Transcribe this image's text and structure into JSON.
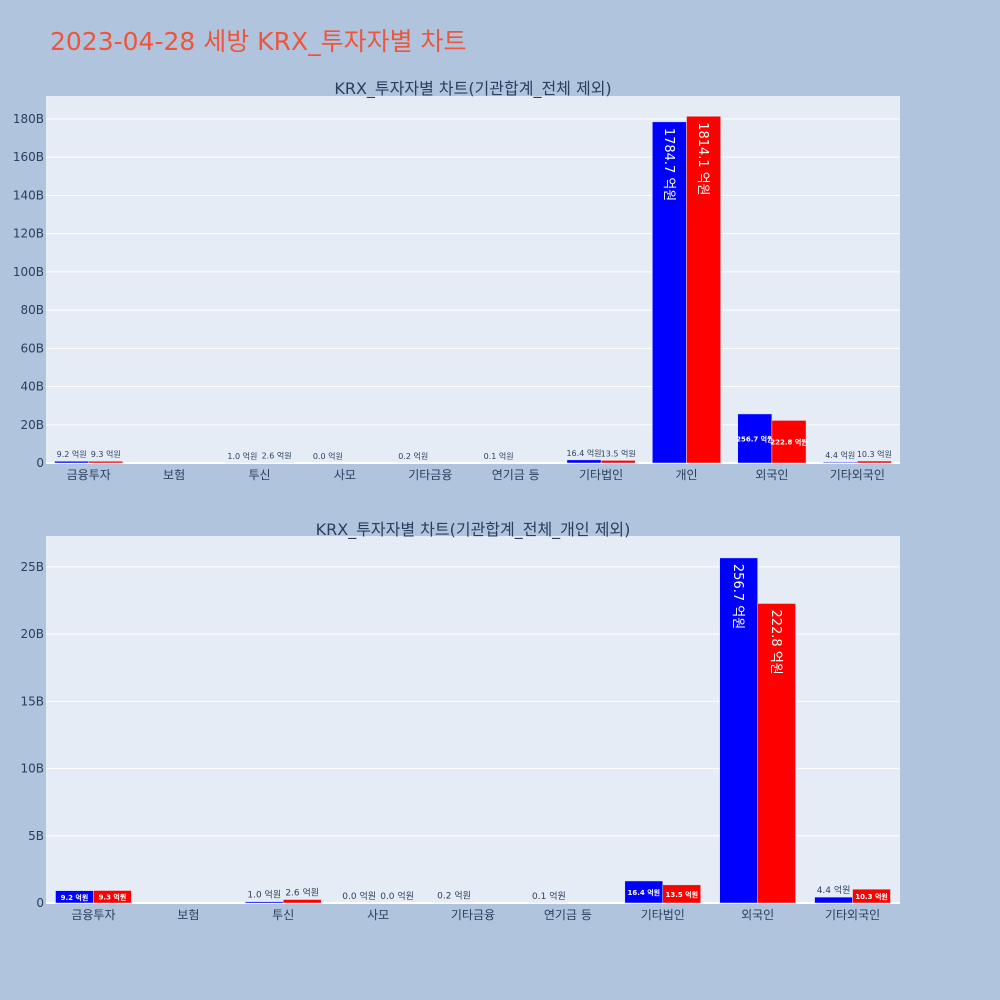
{
  "page_title": "2023-04-28 세방 KRX_투자자별 차트",
  "colors": {
    "page_bg": "#b0c4de",
    "plot_bg": "#e5ecf6",
    "sell": "#0000ff",
    "buy": "#ff0000",
    "title": "#ef553b",
    "text": "#2a3f5f"
  },
  "chart_data": [
    {
      "type": "bar",
      "title": "KRX_투자자별 차트(기관합계_전체 제외)",
      "categories": [
        "금융투자",
        "보험",
        "투신",
        "사모",
        "기타금융",
        "연기금 등",
        "기타법인",
        "개인",
        "외국인",
        "기타외국인"
      ],
      "series": [
        {
          "color": "#0000ff",
          "values": [
            0.92,
            0,
            0.1,
            0.0,
            0.02,
            0.01,
            1.64,
            178.47,
            25.67,
            0.44
          ],
          "labels": [
            "9.2 억원",
            "",
            "1.0 억원",
            "0.0 억원",
            "0.2 억원",
            "0.1 억원",
            "16.4 억원",
            "1784.7 억원",
            "256.7 억원",
            "4.4 억원"
          ]
        },
        {
          "color": "#ff0000",
          "values": [
            0.93,
            0,
            0.26,
            0,
            0,
            0,
            1.35,
            181.41,
            22.28,
            1.03
          ],
          "labels": [
            "9.3 억원",
            "",
            "2.6 억원",
            "",
            "",
            "",
            "13.5 억원",
            "1814.1 억원",
            "222.8 억원",
            "10.3 억원"
          ]
        }
      ],
      "ylim": [
        0,
        192
      ],
      "yticks": [
        0,
        20,
        40,
        60,
        80,
        100,
        120,
        140,
        160,
        180
      ],
      "ytick_labels": [
        "0",
        "20B",
        "40B",
        "60B",
        "80B",
        "100B",
        "120B",
        "140B",
        "160B",
        "180B"
      ],
      "grid": true
    },
    {
      "type": "bar",
      "title": "KRX_투자자별 차트(기관합계_전체_개인 제외)",
      "categories": [
        "금융투자",
        "보험",
        "투신",
        "사모",
        "기타금융",
        "연기금 등",
        "기타법인",
        "외국인",
        "기타외국인"
      ],
      "series": [
        {
          "color": "#0000ff",
          "values": [
            0.92,
            0,
            0.1,
            0.0,
            0.02,
            0.01,
            1.64,
            25.67,
            0.44
          ],
          "labels": [
            "9.2 억원",
            "",
            "1.0 억원",
            "0.0 억원",
            "0.2 억원",
            "0.1 억원",
            "16.4 억원",
            "256.7 억원",
            "4.4 억원"
          ]
        },
        {
          "color": "#ff0000",
          "values": [
            0.93,
            0,
            0.26,
            0.0,
            0,
            0,
            1.35,
            22.28,
            1.03
          ],
          "labels": [
            "9.3 억원",
            "",
            "2.6 억원",
            "0.0 억원",
            "",
            "",
            "13.5 억원",
            "222.8 억원",
            "10.3 억원"
          ]
        }
      ],
      "ylim": [
        0,
        27.3
      ],
      "yticks": [
        0,
        5,
        10,
        15,
        20,
        25
      ],
      "ytick_labels": [
        "0",
        "5B",
        "10B",
        "15B",
        "20B",
        "25B"
      ],
      "grid": true
    }
  ]
}
